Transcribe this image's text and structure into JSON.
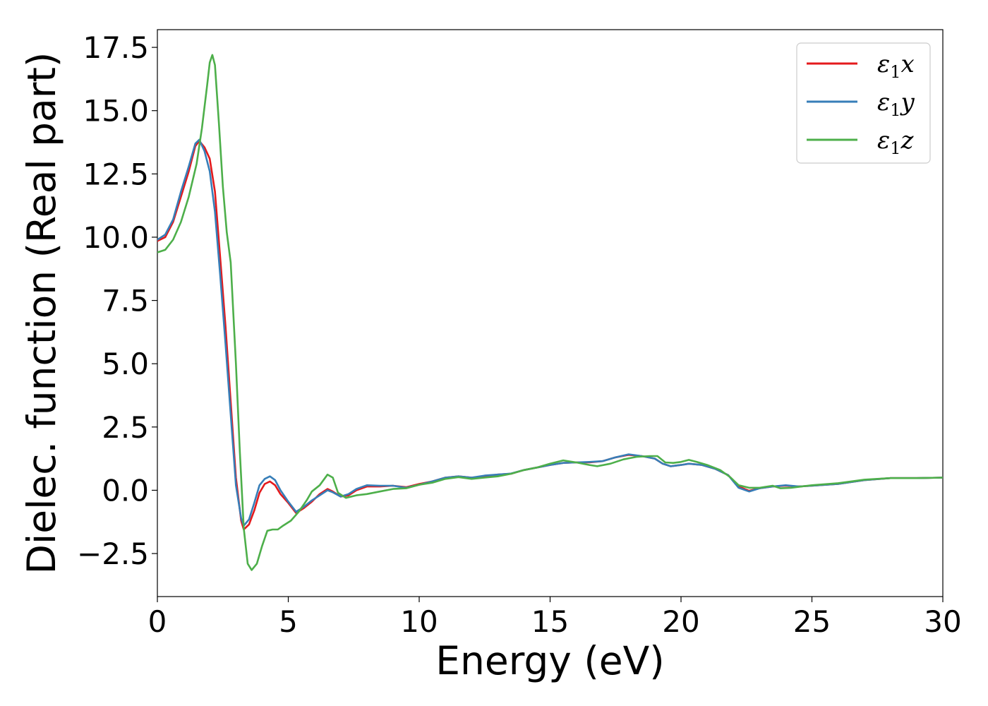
{
  "chart_data": {
    "type": "line",
    "title": "",
    "xlabel": "Energy (eV)",
    "ylabel": "Dielec. function (Real part)",
    "xlim": [
      0,
      30
    ],
    "ylim": [
      -4.2,
      18.2
    ],
    "xticks": [
      0,
      5,
      10,
      15,
      20,
      25,
      30
    ],
    "xtick_labels": [
      "0",
      "5",
      "10",
      "15",
      "20",
      "25",
      "30"
    ],
    "yticks": [
      -2.5,
      0.0,
      2.5,
      5.0,
      7.5,
      10.0,
      12.5,
      15.0,
      17.5
    ],
    "ytick_labels": [
      "−2.5",
      "0.0",
      "2.5",
      "5.0",
      "7.5",
      "10.0",
      "12.5",
      "15.0",
      "17.5"
    ],
    "grid": false,
    "legend_position": "top-right",
    "series": [
      {
        "name": "ε1x",
        "legend_symbol": "ε",
        "legend_sub": "1",
        "legend_var": "x",
        "color": "#e41a1c",
        "points": [
          [
            0,
            9.85
          ],
          [
            0.3,
            10.0
          ],
          [
            0.6,
            10.6
          ],
          [
            0.9,
            11.6
          ],
          [
            1.2,
            12.6
          ],
          [
            1.45,
            13.6
          ],
          [
            1.6,
            13.8
          ],
          [
            1.8,
            13.55
          ],
          [
            2.0,
            13.1
          ],
          [
            2.2,
            11.8
          ],
          [
            2.4,
            9.2
          ],
          [
            2.6,
            6.5
          ],
          [
            2.8,
            3.5
          ],
          [
            3.0,
            0.5
          ],
          [
            3.2,
            -1.2
          ],
          [
            3.3,
            -1.55
          ],
          [
            3.5,
            -1.35
          ],
          [
            3.7,
            -0.8
          ],
          [
            3.9,
            -0.1
          ],
          [
            4.1,
            0.25
          ],
          [
            4.3,
            0.35
          ],
          [
            4.5,
            0.2
          ],
          [
            4.7,
            -0.15
          ],
          [
            5.0,
            -0.5
          ],
          [
            5.3,
            -0.9
          ],
          [
            5.6,
            -0.7
          ],
          [
            5.9,
            -0.45
          ],
          [
            6.2,
            -0.15
          ],
          [
            6.5,
            0.05
          ],
          [
            6.7,
            -0.05
          ],
          [
            7.0,
            -0.25
          ],
          [
            7.3,
            -0.2
          ],
          [
            7.6,
            0.0
          ],
          [
            8.0,
            0.15
          ],
          [
            8.5,
            0.15
          ],
          [
            9.0,
            0.18
          ],
          [
            9.5,
            0.12
          ],
          [
            10.0,
            0.25
          ],
          [
            10.5,
            0.35
          ],
          [
            11.0,
            0.5
          ],
          [
            11.5,
            0.55
          ],
          [
            12.0,
            0.5
          ],
          [
            12.5,
            0.55
          ],
          [
            13.0,
            0.62
          ],
          [
            13.5,
            0.65
          ],
          [
            14.0,
            0.8
          ],
          [
            14.5,
            0.9
          ],
          [
            15.0,
            1.0
          ],
          [
            15.5,
            1.08
          ],
          [
            16.0,
            1.1
          ],
          [
            16.5,
            1.1
          ],
          [
            17.0,
            1.15
          ],
          [
            17.5,
            1.3
          ],
          [
            18.0,
            1.4
          ],
          [
            18.5,
            1.35
          ],
          [
            19.0,
            1.25
          ],
          [
            19.3,
            1.05
          ],
          [
            19.6,
            0.95
          ],
          [
            20.0,
            1.0
          ],
          [
            20.3,
            1.05
          ],
          [
            20.8,
            1.0
          ],
          [
            21.3,
            0.85
          ],
          [
            21.8,
            0.6
          ],
          [
            22.2,
            0.15
          ],
          [
            22.6,
            -0.02
          ],
          [
            23.0,
            0.08
          ],
          [
            23.5,
            0.15
          ],
          [
            24.0,
            0.18
          ],
          [
            24.5,
            0.15
          ],
          [
            25.0,
            0.18
          ],
          [
            26.0,
            0.25
          ],
          [
            27.0,
            0.4
          ],
          [
            28.0,
            0.48
          ],
          [
            29.0,
            0.48
          ],
          [
            30.0,
            0.5
          ]
        ]
      },
      {
        "name": "ε1y",
        "legend_symbol": "ε",
        "legend_sub": "1",
        "legend_var": "y",
        "color": "#377eb8",
        "points": [
          [
            0,
            9.9
          ],
          [
            0.3,
            10.1
          ],
          [
            0.6,
            10.7
          ],
          [
            0.9,
            11.8
          ],
          [
            1.2,
            12.8
          ],
          [
            1.45,
            13.7
          ],
          [
            1.6,
            13.85
          ],
          [
            1.8,
            13.4
          ],
          [
            2.0,
            12.6
          ],
          [
            2.2,
            11.0
          ],
          [
            2.4,
            8.5
          ],
          [
            2.6,
            5.8
          ],
          [
            2.8,
            3.0
          ],
          [
            3.0,
            0.2
          ],
          [
            3.2,
            -1.1
          ],
          [
            3.3,
            -1.4
          ],
          [
            3.5,
            -1.15
          ],
          [
            3.7,
            -0.5
          ],
          [
            3.9,
            0.2
          ],
          [
            4.1,
            0.45
          ],
          [
            4.3,
            0.55
          ],
          [
            4.5,
            0.4
          ],
          [
            4.7,
            0.0
          ],
          [
            5.0,
            -0.45
          ],
          [
            5.3,
            -0.85
          ],
          [
            5.6,
            -0.65
          ],
          [
            5.9,
            -0.4
          ],
          [
            6.2,
            -0.2
          ],
          [
            6.5,
            0.0
          ],
          [
            6.7,
            -0.08
          ],
          [
            7.0,
            -0.25
          ],
          [
            7.3,
            -0.15
          ],
          [
            7.6,
            0.05
          ],
          [
            8.0,
            0.2
          ],
          [
            8.5,
            0.18
          ],
          [
            9.0,
            0.18
          ],
          [
            9.5,
            0.1
          ],
          [
            10.0,
            0.22
          ],
          [
            10.5,
            0.35
          ],
          [
            11.0,
            0.5
          ],
          [
            11.5,
            0.55
          ],
          [
            12.0,
            0.5
          ],
          [
            12.5,
            0.58
          ],
          [
            13.0,
            0.62
          ],
          [
            13.5,
            0.66
          ],
          [
            14.0,
            0.8
          ],
          [
            14.5,
            0.9
          ],
          [
            15.0,
            1.0
          ],
          [
            15.5,
            1.08
          ],
          [
            16.0,
            1.1
          ],
          [
            16.5,
            1.12
          ],
          [
            17.0,
            1.15
          ],
          [
            17.5,
            1.3
          ],
          [
            18.0,
            1.42
          ],
          [
            18.5,
            1.35
          ],
          [
            19.0,
            1.25
          ],
          [
            19.3,
            1.05
          ],
          [
            19.6,
            0.95
          ],
          [
            20.0,
            1.0
          ],
          [
            20.3,
            1.05
          ],
          [
            20.8,
            1.0
          ],
          [
            21.3,
            0.85
          ],
          [
            21.8,
            0.6
          ],
          [
            22.2,
            0.1
          ],
          [
            22.6,
            -0.05
          ],
          [
            23.0,
            0.08
          ],
          [
            23.5,
            0.15
          ],
          [
            24.0,
            0.2
          ],
          [
            24.5,
            0.15
          ],
          [
            25.0,
            0.18
          ],
          [
            26.0,
            0.25
          ],
          [
            27.0,
            0.4
          ],
          [
            28.0,
            0.48
          ],
          [
            29.0,
            0.48
          ],
          [
            30.0,
            0.5
          ]
        ]
      },
      {
        "name": "ε1z",
        "legend_symbol": "ε",
        "legend_sub": "1",
        "legend_var": "z",
        "color": "#4daf4a",
        "points": [
          [
            0,
            9.4
          ],
          [
            0.3,
            9.5
          ],
          [
            0.6,
            9.9
          ],
          [
            0.9,
            10.6
          ],
          [
            1.2,
            11.6
          ],
          [
            1.5,
            12.9
          ],
          [
            1.7,
            14.3
          ],
          [
            1.9,
            16.0
          ],
          [
            2.0,
            16.9
          ],
          [
            2.1,
            17.2
          ],
          [
            2.2,
            16.8
          ],
          [
            2.35,
            14.5
          ],
          [
            2.5,
            12.0
          ],
          [
            2.65,
            10.2
          ],
          [
            2.8,
            9.0
          ],
          [
            3.0,
            5.0
          ],
          [
            3.15,
            1.5
          ],
          [
            3.3,
            -1.5
          ],
          [
            3.45,
            -2.9
          ],
          [
            3.6,
            -3.15
          ],
          [
            3.8,
            -2.9
          ],
          [
            4.0,
            -2.2
          ],
          [
            4.2,
            -1.6
          ],
          [
            4.4,
            -1.55
          ],
          [
            4.6,
            -1.55
          ],
          [
            4.8,
            -1.4
          ],
          [
            5.1,
            -1.2
          ],
          [
            5.4,
            -0.85
          ],
          [
            5.7,
            -0.4
          ],
          [
            5.9,
            -0.05
          ],
          [
            6.2,
            0.2
          ],
          [
            6.5,
            0.62
          ],
          [
            6.7,
            0.5
          ],
          [
            6.9,
            -0.1
          ],
          [
            7.2,
            -0.3
          ],
          [
            7.6,
            -0.2
          ],
          [
            8.0,
            -0.15
          ],
          [
            8.5,
            -0.05
          ],
          [
            9.0,
            0.05
          ],
          [
            9.5,
            0.08
          ],
          [
            10.0,
            0.22
          ],
          [
            10.5,
            0.3
          ],
          [
            11.0,
            0.45
          ],
          [
            11.5,
            0.52
          ],
          [
            12.0,
            0.45
          ],
          [
            12.5,
            0.5
          ],
          [
            13.0,
            0.55
          ],
          [
            13.5,
            0.65
          ],
          [
            14.0,
            0.8
          ],
          [
            14.5,
            0.9
          ],
          [
            15.0,
            1.05
          ],
          [
            15.5,
            1.18
          ],
          [
            16.0,
            1.1
          ],
          [
            16.5,
            1.0
          ],
          [
            16.8,
            0.95
          ],
          [
            17.3,
            1.05
          ],
          [
            17.8,
            1.22
          ],
          [
            18.3,
            1.32
          ],
          [
            18.8,
            1.35
          ],
          [
            19.1,
            1.35
          ],
          [
            19.4,
            1.1
          ],
          [
            19.7,
            1.08
          ],
          [
            20.0,
            1.12
          ],
          [
            20.3,
            1.2
          ],
          [
            20.6,
            1.12
          ],
          [
            21.0,
            1.0
          ],
          [
            21.5,
            0.8
          ],
          [
            21.9,
            0.5
          ],
          [
            22.2,
            0.2
          ],
          [
            22.6,
            0.1
          ],
          [
            23.0,
            0.1
          ],
          [
            23.5,
            0.18
          ],
          [
            23.8,
            0.08
          ],
          [
            24.2,
            0.1
          ],
          [
            24.6,
            0.15
          ],
          [
            25.0,
            0.2
          ],
          [
            26.0,
            0.28
          ],
          [
            27.0,
            0.42
          ],
          [
            28.0,
            0.48
          ],
          [
            29.0,
            0.48
          ],
          [
            30.0,
            0.5
          ]
        ]
      }
    ]
  }
}
